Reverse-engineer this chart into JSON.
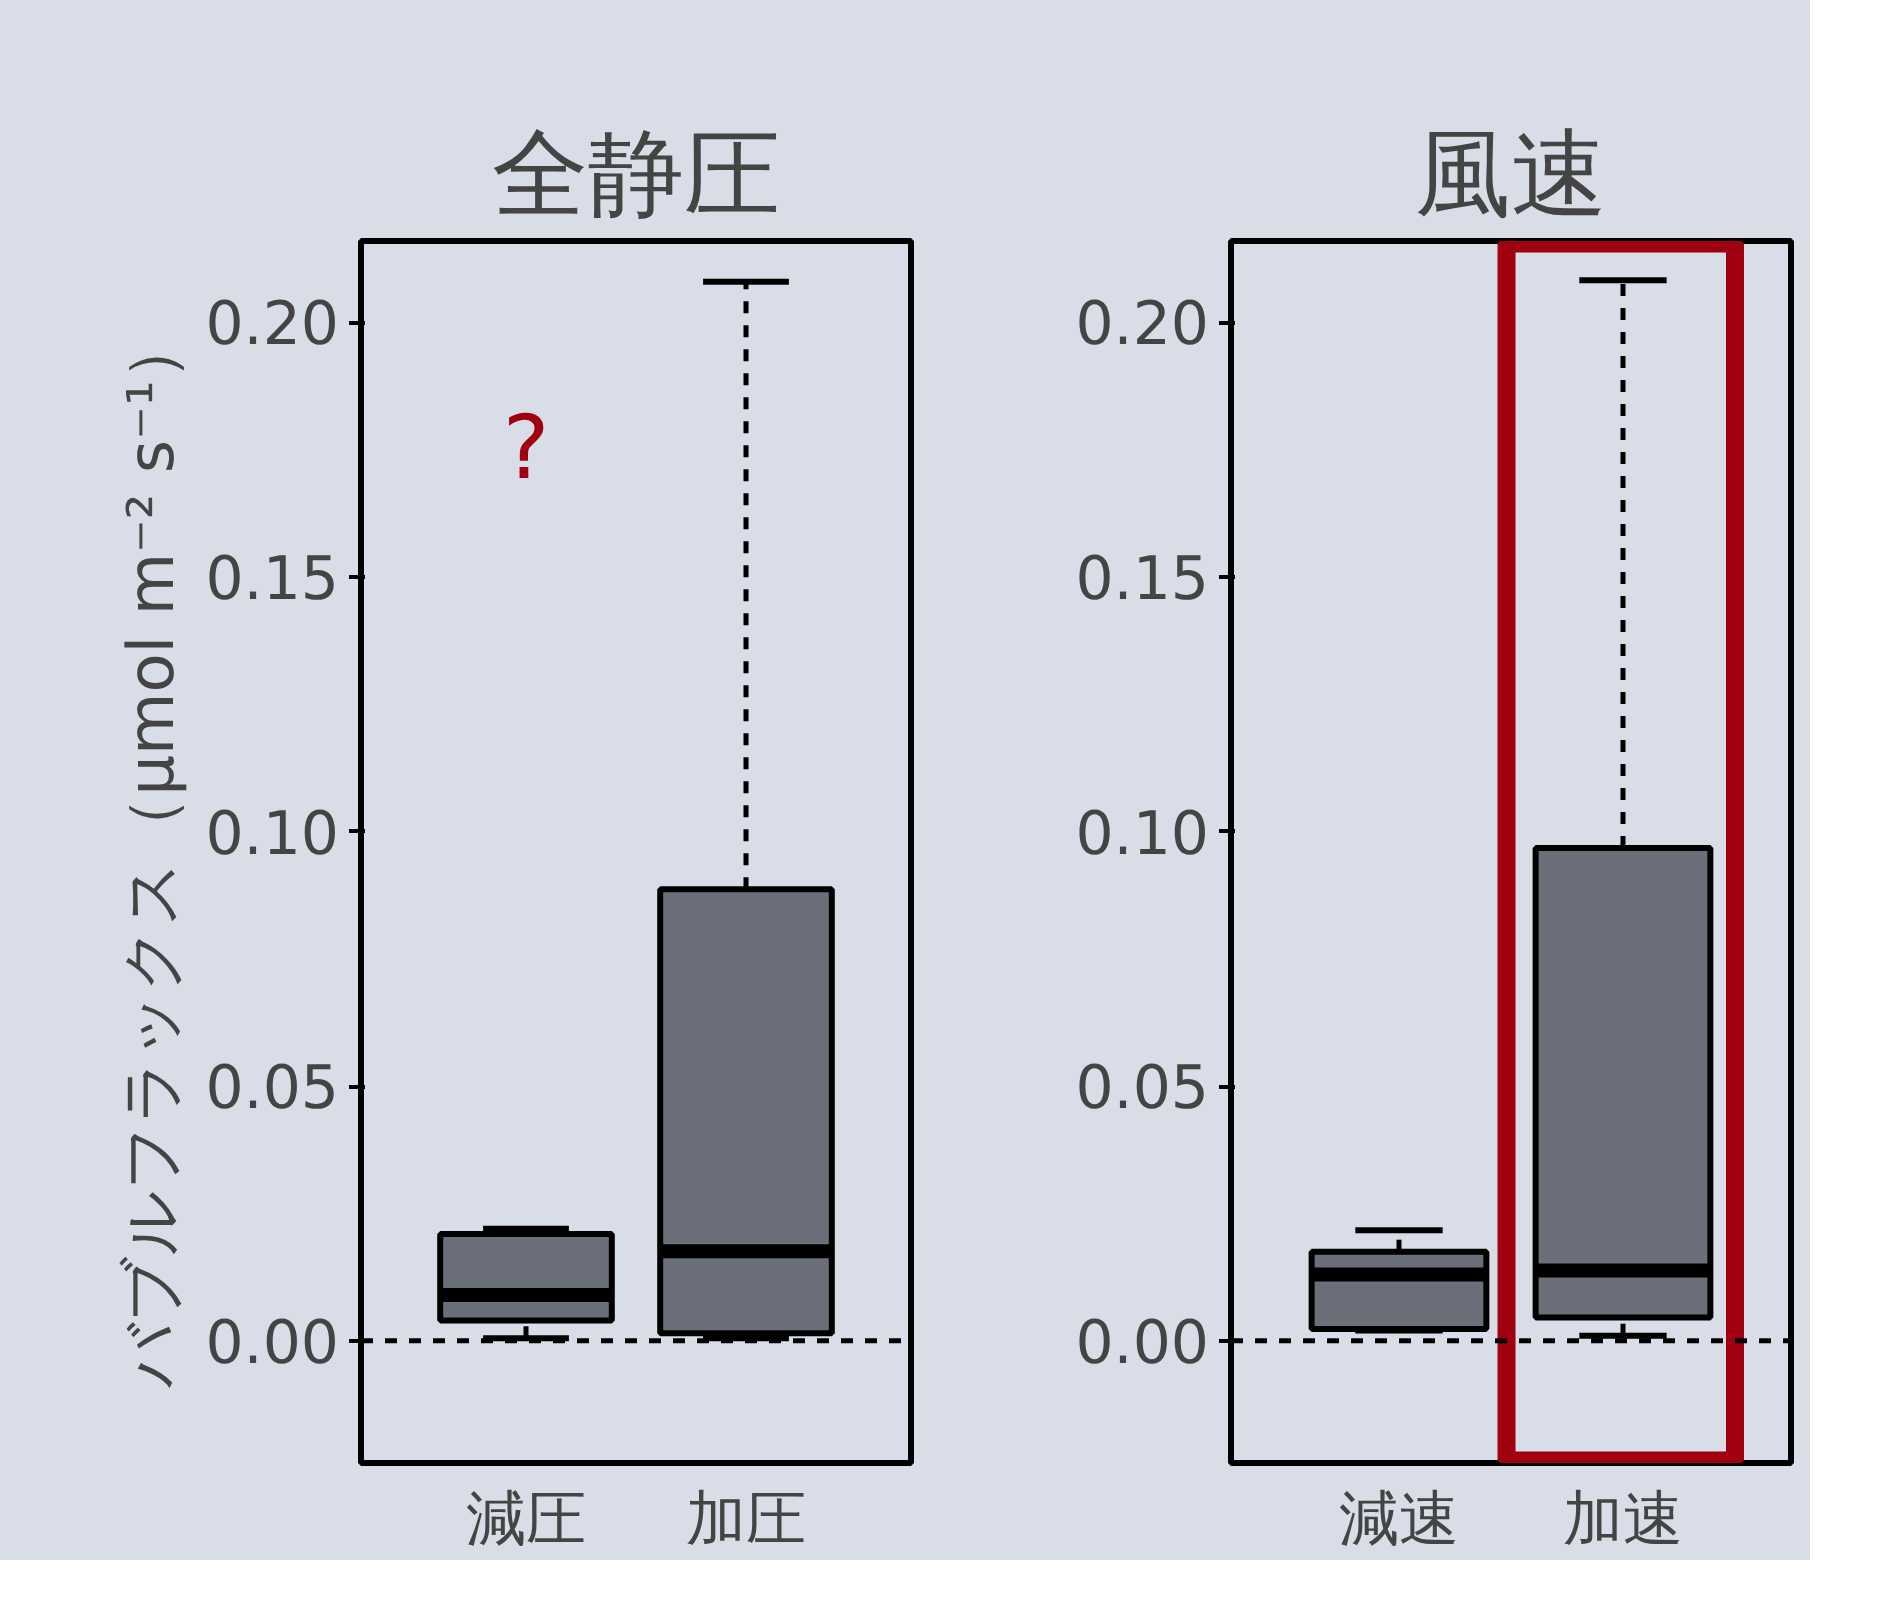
{
  "chart_data": [
    {
      "type": "box",
      "title": "全静圧",
      "ylabel": "バブルフラックス（μmol m⁻² s⁻¹）",
      "categories": [
        "減圧",
        "加圧"
      ],
      "color": "#6b6f7a",
      "boxes": [
        {
          "low": 0.0005,
          "q1": 0.004,
          "median": 0.009,
          "q3": 0.021,
          "high": 0.022
        },
        {
          "low": 0.0005,
          "q1": 0.0015,
          "median": 0.0176,
          "q3": 0.0887,
          "high": 0.208
        }
      ],
      "ylim": [
        -0.024,
        0.216
      ],
      "yticks": [
        {
          "value": 0,
          "label": "0.00"
        },
        {
          "value": 0.05,
          "label": "0.05"
        },
        {
          "value": 0.1,
          "label": "0.10"
        },
        {
          "value": 0.15,
          "label": "0.15"
        },
        {
          "value": 0.2,
          "label": "0.20"
        }
      ],
      "ref_lines": [
        {
          "axis": "y",
          "value": 0,
          "line_style": "dashed"
        }
      ],
      "annotations": [
        "?"
      ],
      "grid": false
    },
    {
      "type": "box",
      "title": "風速",
      "categories": [
        "減速",
        "加速"
      ],
      "color": "#6b6f7a",
      "boxes": [
        {
          "low": 0.002,
          "q1": 0.0023,
          "median": 0.013,
          "q3": 0.0175,
          "high": 0.0217
        },
        {
          "low": 0.001,
          "q1": 0.0046,
          "median": 0.0138,
          "q3": 0.0968,
          "high": 0.2083
        }
      ],
      "ylim": [
        -0.024,
        0.216
      ],
      "yticks": [
        {
          "value": 0,
          "label": "0.00"
        },
        {
          "value": 0.05,
          "label": "0.05"
        },
        {
          "value": 0.1,
          "label": "0.10"
        },
        {
          "value": 0.15,
          "label": "0.15"
        },
        {
          "value": 0.2,
          "label": "0.20"
        }
      ],
      "ref_lines": [
        {
          "axis": "y",
          "value": 0,
          "line_style": "dashed"
        }
      ],
      "grid": false
    }
  ]
}
